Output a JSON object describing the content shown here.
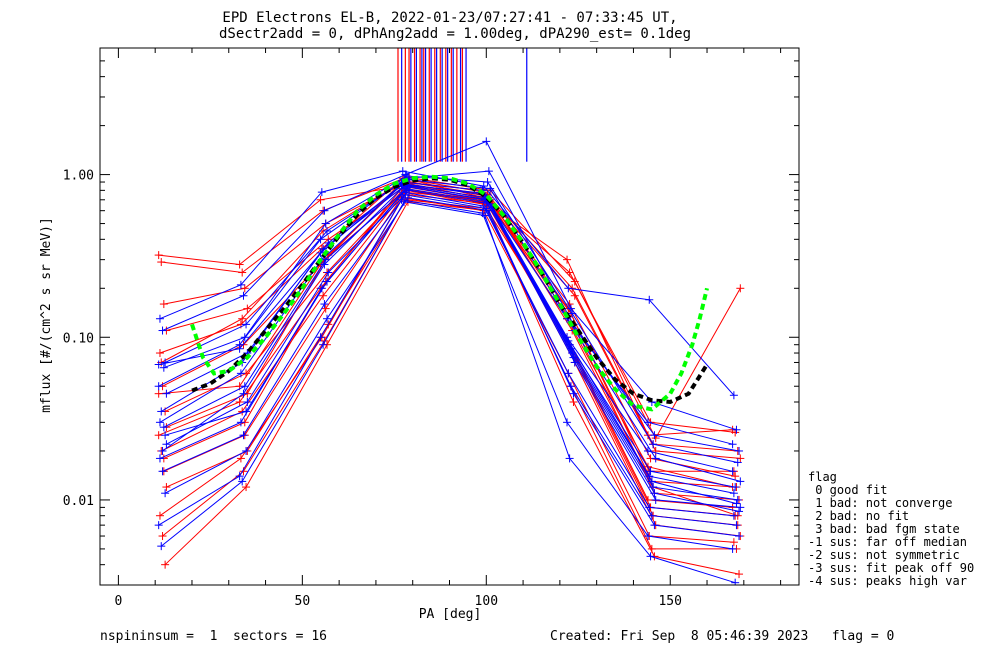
{
  "header": {
    "title_line1": "EPD Electrons EL-B, 2022-01-23/07:27:41 - 07:33:45 UT,",
    "title_line2": "dSectr2add = 0, dPhAng2add = 1.00deg, dPA290_est=   0.1deg"
  },
  "footer": {
    "left": "nspininsum =  1  sectors = 16",
    "right": "Created: Fri Sep  8 05:46:39 2023   flag = 0"
  },
  "legend": {
    "title": "flag",
    "items": [
      " 0 good fit",
      " 1 bad: not converge",
      " 2 bad: no fit",
      " 3 bad: bad fgm state",
      "-1 sus: far off median",
      "-2 sus: not symmetric",
      "-3 sus: fit peak off 90",
      "-4 sus: peaks high var"
    ]
  },
  "chart_data": {
    "type": "line",
    "xlabel": "PA [deg]",
    "ylabel": "mflux [#/(cm^2 s sr MeV)]",
    "xlim": [
      -5,
      185
    ],
    "ylim": [
      0.003,
      6.0
    ],
    "yscale": "log",
    "xticks": [
      "0",
      "50",
      "100",
      "150"
    ],
    "yticks": [
      "0.01",
      "0.10",
      "1.00"
    ],
    "grid": false,
    "colors": {
      "red": "#ff0000",
      "blue": "#0000ff",
      "green": "#00ff00",
      "black": "#000000"
    },
    "pa_bins": [
      12,
      34,
      56,
      78,
      100,
      123,
      145,
      168
    ],
    "profile_median": [
      0.035,
      0.045,
      0.25,
      0.85,
      0.75,
      0.12,
      0.012,
      0.009
    ],
    "series": [
      {
        "color": "red",
        "values": [
          0.32,
          0.28,
          0.7,
          0.85,
          0.7,
          0.3,
          0.025,
          0.027
        ]
      },
      {
        "color": "red",
        "values": [
          0.29,
          0.25,
          0.6,
          0.95,
          0.72,
          0.25,
          0.03,
          0.026
        ]
      },
      {
        "color": "red",
        "values": [
          0.16,
          0.2,
          0.5,
          0.9,
          0.75,
          0.2,
          0.022,
          0.02
        ]
      },
      {
        "color": "red",
        "values": [
          0.11,
          0.15,
          0.4,
          0.88,
          0.7,
          0.18,
          0.02,
          0.018
        ]
      },
      {
        "color": "red",
        "values": [
          0.08,
          0.12,
          0.35,
          0.95,
          0.78,
          0.15,
          0.015,
          0.015
        ]
      },
      {
        "color": "red",
        "values": [
          0.05,
          0.09,
          0.3,
          0.8,
          0.7,
          0.14,
          0.013,
          0.012
        ]
      },
      {
        "color": "red",
        "values": [
          0.035,
          0.06,
          0.25,
          0.85,
          0.72,
          0.12,
          0.011,
          0.01
        ]
      },
      {
        "color": "red",
        "values": [
          0.025,
          0.04,
          0.2,
          0.82,
          0.68,
          0.1,
          0.01,
          0.009
        ]
      },
      {
        "color": "red",
        "values": [
          0.02,
          0.035,
          0.18,
          0.78,
          0.7,
          0.09,
          0.009,
          0.008
        ]
      },
      {
        "color": "red",
        "values": [
          0.015,
          0.025,
          0.15,
          0.8,
          0.65,
          0.08,
          0.008,
          0.007
        ]
      },
      {
        "color": "red",
        "values": [
          0.012,
          0.02,
          0.12,
          0.75,
          0.66,
          0.07,
          0.007,
          0.006
        ]
      },
      {
        "color": "red",
        "values": [
          0.008,
          0.018,
          0.1,
          0.72,
          0.6,
          0.06,
          0.006,
          0.0055
        ]
      },
      {
        "color": "red",
        "values": [
          0.006,
          0.015,
          0.095,
          0.7,
          0.62,
          0.05,
          0.005,
          0.005
        ]
      },
      {
        "color": "red",
        "values": [
          0.004,
          0.012,
          0.09,
          0.68,
          0.6,
          0.04,
          0.0045,
          0.0035
        ]
      },
      {
        "color": "red",
        "values": [
          0.045,
          0.05,
          0.28,
          0.9,
          0.8,
          0.13,
          0.016,
          0.012
        ]
      },
      {
        "color": "red",
        "values": [
          0.07,
          0.13,
          0.45,
          0.92,
          0.74,
          0.16,
          0.018,
          0.014
        ]
      },
      {
        "color": "red",
        "values": [
          0.018,
          0.03,
          0.22,
          0.86,
          0.76,
          0.11,
          0.012,
          0.008
        ]
      },
      {
        "color": "red",
        "values": [
          0.028,
          0.045,
          0.32,
          0.96,
          0.8,
          0.22,
          0.024,
          0.2
        ]
      },
      {
        "color": "blue",
        "values": [
          0.13,
          0.21,
          0.78,
          1.05,
          0.85,
          0.2,
          0.17,
          0.044
        ]
      },
      {
        "color": "blue",
        "values": [
          0.11,
          0.18,
          0.6,
          1.0,
          1.6,
          0.15,
          0.04,
          0.027
        ]
      },
      {
        "color": "blue",
        "values": [
          0.07,
          0.12,
          0.45,
          0.95,
          1.05,
          0.12,
          0.025,
          0.02
        ]
      },
      {
        "color": "blue",
        "values": [
          0.05,
          0.09,
          0.4,
          0.9,
          0.8,
          0.1,
          0.02,
          0.015
        ]
      },
      {
        "color": "blue",
        "values": [
          0.035,
          0.07,
          0.35,
          0.85,
          0.7,
          0.09,
          0.015,
          0.012
        ]
      },
      {
        "color": "blue",
        "values": [
          0.028,
          0.05,
          0.3,
          0.82,
          0.68,
          0.08,
          0.012,
          0.01
        ]
      },
      {
        "color": "blue",
        "values": [
          0.022,
          0.04,
          0.25,
          0.8,
          0.66,
          0.07,
          0.01,
          0.009
        ]
      },
      {
        "color": "blue",
        "values": [
          0.018,
          0.03,
          0.2,
          0.78,
          0.64,
          0.06,
          0.009,
          0.008
        ]
      },
      {
        "color": "blue",
        "values": [
          0.015,
          0.025,
          0.16,
          0.75,
          0.62,
          0.05,
          0.008,
          0.007
        ]
      },
      {
        "color": "blue",
        "values": [
          0.011,
          0.02,
          0.13,
          0.72,
          0.6,
          0.045,
          0.007,
          0.006
        ]
      },
      {
        "color": "blue",
        "values": [
          0.007,
          0.014,
          0.1,
          0.7,
          0.58,
          0.03,
          0.006,
          0.005
        ]
      },
      {
        "color": "blue",
        "values": [
          0.0052,
          0.013,
          0.09,
          0.68,
          0.56,
          0.018,
          0.0045,
          0.0031
        ]
      },
      {
        "color": "blue",
        "values": [
          0.065,
          0.1,
          0.5,
          0.98,
          0.9,
          0.14,
          0.022,
          0.017
        ]
      },
      {
        "color": "blue",
        "values": [
          0.045,
          0.08,
          0.38,
          0.93,
          0.82,
          0.11,
          0.018,
          0.013
        ]
      },
      {
        "color": "blue",
        "values": [
          0.03,
          0.06,
          0.3,
          0.88,
          0.75,
          0.095,
          0.014,
          0.011
        ]
      },
      {
        "color": "blue",
        "values": [
          0.02,
          0.045,
          0.28,
          0.86,
          0.72,
          0.085,
          0.013,
          0.0095
        ]
      },
      {
        "color": "blue",
        "values": [
          0.025,
          0.035,
          0.22,
          0.84,
          0.7,
          0.075,
          0.011,
          0.0085
        ]
      },
      {
        "color": "blue",
        "values": [
          0.068,
          0.085,
          0.33,
          0.87,
          0.77,
          0.13,
          0.03,
          0.022
        ]
      }
    ],
    "fit_green": {
      "color": "green",
      "x": [
        20,
        23,
        26,
        30,
        35,
        40,
        45,
        50,
        55,
        60,
        65,
        70,
        75,
        80,
        85,
        90,
        95,
        100,
        105,
        110,
        115,
        120,
        125,
        130,
        135,
        140,
        145,
        150,
        153,
        156,
        158,
        160
      ],
      "y": [
        0.12,
        0.075,
        0.06,
        0.062,
        0.075,
        0.1,
        0.14,
        0.2,
        0.3,
        0.43,
        0.6,
        0.75,
        0.88,
        0.95,
        0.97,
        0.95,
        0.88,
        0.75,
        0.55,
        0.38,
        0.25,
        0.16,
        0.1,
        0.066,
        0.048,
        0.038,
        0.036,
        0.045,
        0.06,
        0.09,
        0.13,
        0.2
      ]
    },
    "fit_black": {
      "color": "black",
      "x": [
        20,
        25,
        30,
        35,
        40,
        45,
        50,
        55,
        60,
        65,
        70,
        75,
        80,
        85,
        90,
        95,
        100,
        105,
        110,
        115,
        120,
        125,
        130,
        135,
        140,
        145,
        150,
        155,
        160
      ],
      "y": [
        0.047,
        0.052,
        0.062,
        0.08,
        0.11,
        0.15,
        0.21,
        0.3,
        0.42,
        0.57,
        0.72,
        0.84,
        0.92,
        0.95,
        0.93,
        0.86,
        0.73,
        0.55,
        0.38,
        0.25,
        0.16,
        0.11,
        0.075,
        0.055,
        0.045,
        0.041,
        0.04,
        0.045,
        0.068
      ]
    },
    "top_ticks_red": [
      76,
      78,
      79,
      80.5,
      82,
      83,
      84.5,
      86,
      87.5,
      89,
      90.5,
      92,
      93.5
    ],
    "top_ticks_blue": [
      77,
      79.5,
      81,
      82.5,
      83.5,
      85,
      86.5,
      88,
      89.5,
      91,
      93,
      94.5,
      111
    ]
  }
}
